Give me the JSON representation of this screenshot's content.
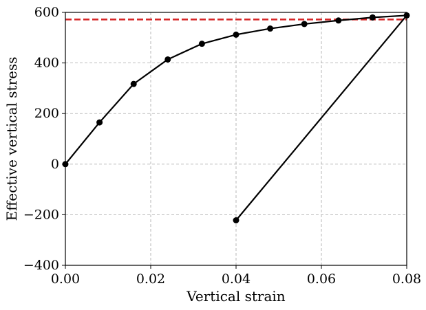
{
  "chart_data": {
    "type": "line",
    "title": "",
    "xlabel": "Vertical strain",
    "ylabel": "Effective vertical stress",
    "xlim": [
      0.0,
      0.08
    ],
    "ylim": [
      -400,
      600
    ],
    "grid": true,
    "x_ticks": [
      0.0,
      0.02,
      0.04,
      0.06,
      0.08
    ],
    "x_tick_labels": [
      "0.00",
      "0.02",
      "0.04",
      "0.06",
      "0.08"
    ],
    "y_ticks": [
      -400,
      -200,
      0,
      200,
      400,
      600
    ],
    "y_tick_labels": [
      "−400",
      "−200",
      "0",
      "200",
      "400",
      "600"
    ],
    "series": [
      {
        "color": "#000000",
        "line_style": "solid",
        "marker": "circle",
        "points": [
          [
            0.0,
            0
          ],
          [
            0.008,
            165
          ],
          [
            0.016,
            317
          ],
          [
            0.024,
            414
          ],
          [
            0.032,
            476
          ],
          [
            0.04,
            512
          ],
          [
            0.048,
            536
          ],
          [
            0.056,
            554
          ],
          [
            0.064,
            568
          ],
          [
            0.072,
            580
          ],
          [
            0.08,
            588
          ],
          [
            0.04,
            -222
          ]
        ]
      }
    ],
    "reference_lines": [
      {
        "orientation": "horizontal",
        "y": 572,
        "color": "#d62728",
        "line_style": "dashed"
      }
    ]
  }
}
